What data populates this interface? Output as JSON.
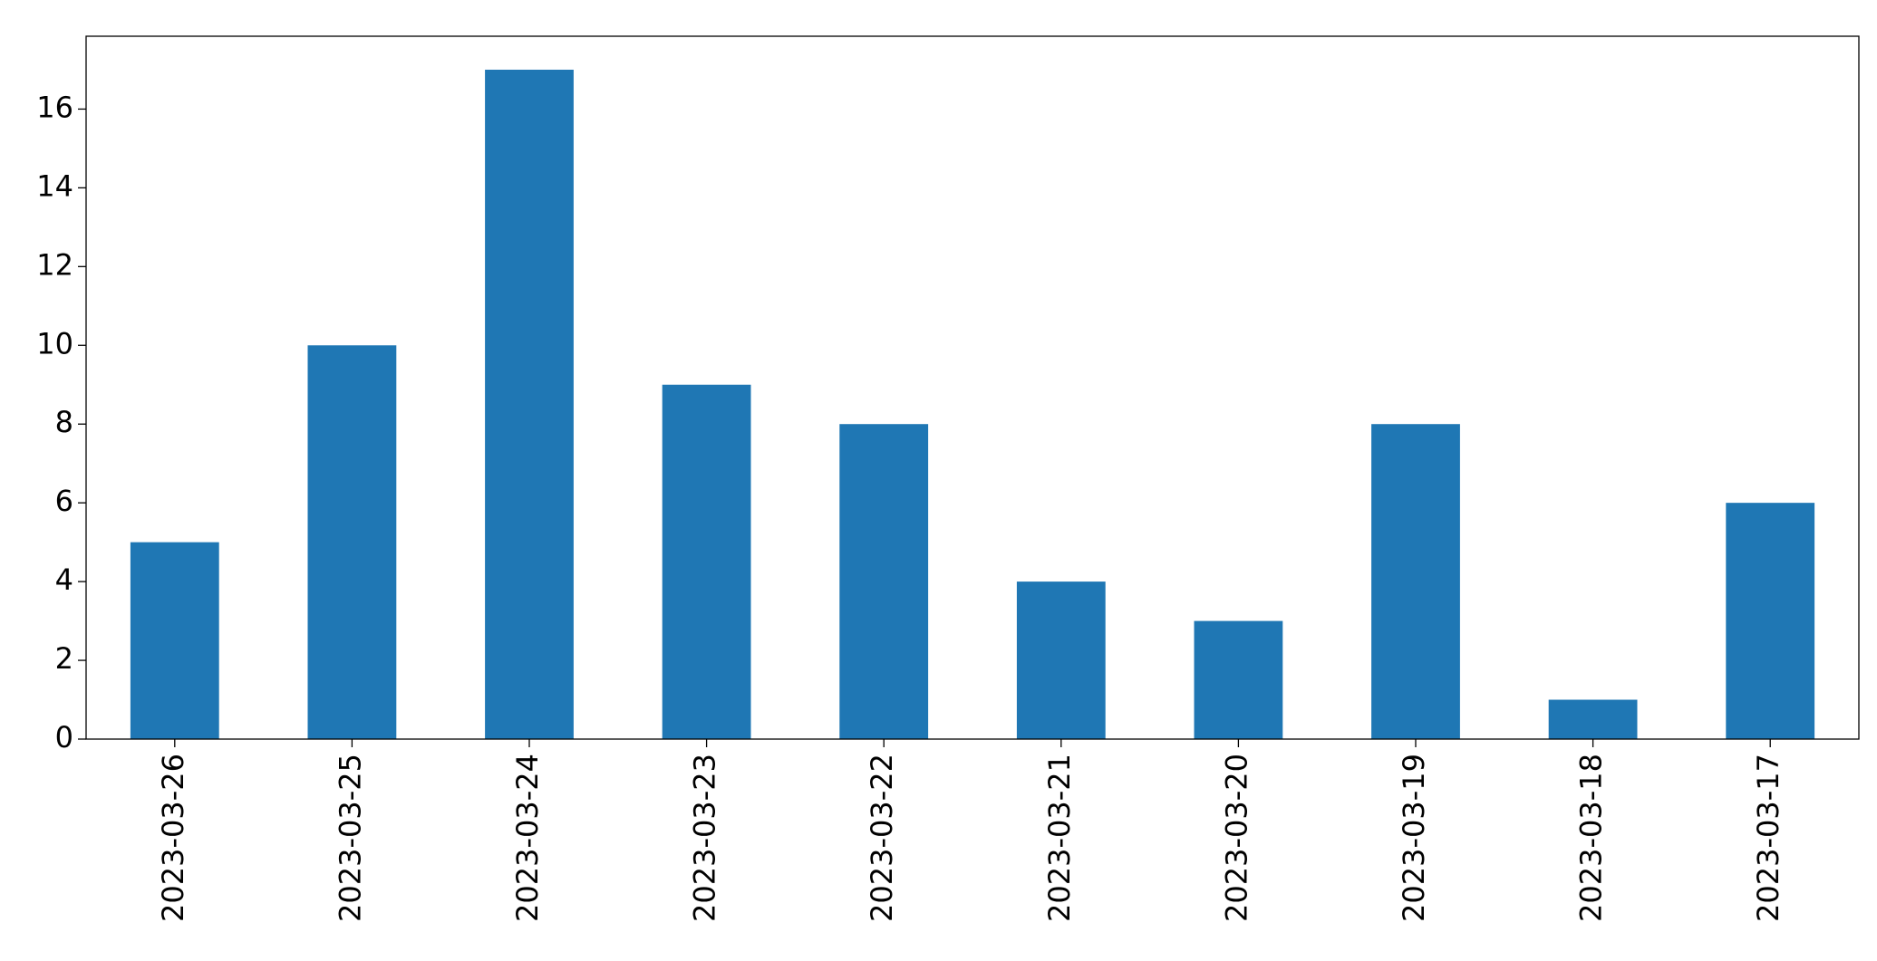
{
  "chart_data": {
    "type": "bar",
    "categories": [
      "2023-03-26",
      "2023-03-25",
      "2023-03-24",
      "2023-03-23",
      "2023-03-22",
      "2023-03-21",
      "2023-03-20",
      "2023-03-19",
      "2023-03-18",
      "2023-03-17"
    ],
    "values": [
      5,
      10,
      17,
      9,
      8,
      4,
      3,
      8,
      1,
      6
    ],
    "color": "#1f77b4",
    "ylim": [
      0,
      17.85
    ],
    "yticks": [
      0,
      2,
      4,
      6,
      8,
      10,
      12,
      14,
      16
    ],
    "grid": false
  }
}
